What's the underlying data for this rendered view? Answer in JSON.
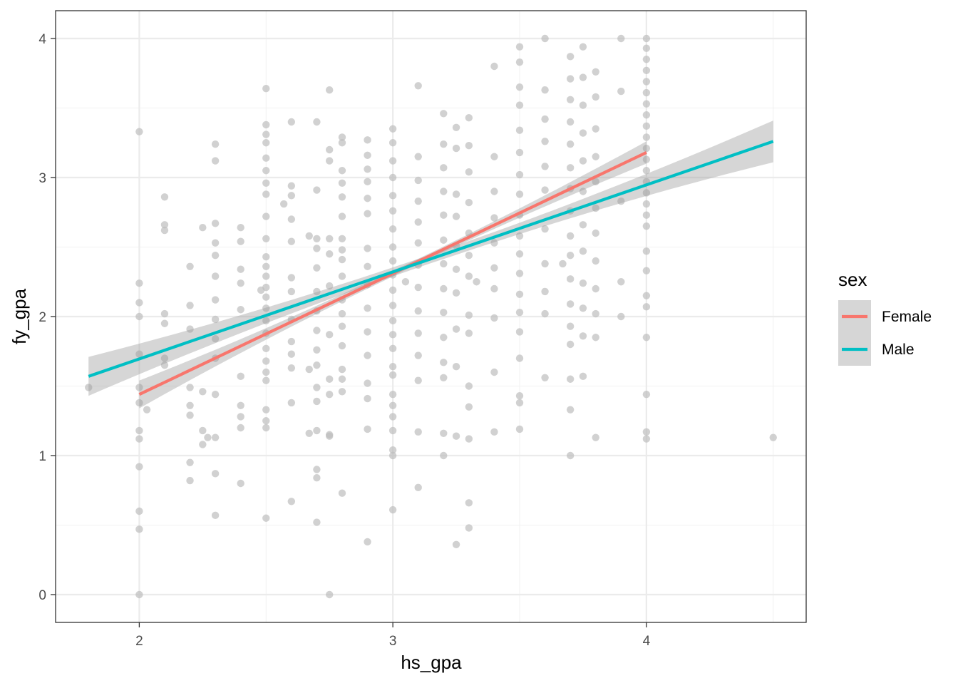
{
  "chart_data": {
    "type": "scatter",
    "xlabel": "hs_gpa",
    "ylabel": "fy_gpa",
    "xlim": [
      1.67,
      4.63
    ],
    "ylim": [
      -0.2,
      4.2
    ],
    "x_ticks": [
      2,
      3,
      4
    ],
    "y_ticks": [
      0,
      1,
      2,
      3,
      4
    ],
    "x_tick_labels": [
      "2",
      "3",
      "4"
    ],
    "y_tick_labels": [
      "0",
      "1",
      "2",
      "3",
      "4"
    ],
    "grid": true,
    "legend": {
      "title": "sex",
      "placement": "right"
    },
    "point_color": "#bebebe",
    "ribbon_color": "#999999",
    "series": [
      {
        "name": "Female",
        "color": "#F8766D",
        "x": [
          2.0,
          4.0
        ],
        "y": [
          1.44,
          3.18
        ],
        "se": [
          0.1,
          0.08
        ]
      },
      {
        "name": "Male",
        "color": "#00BFC4",
        "x": [
          1.8,
          4.5
        ],
        "y": [
          1.57,
          3.26
        ],
        "se": [
          0.14,
          0.15
        ]
      }
    ],
    "points": [
      [
        1.8,
        1.49
      ],
      [
        2.0,
        3.33
      ],
      [
        2.0,
        2.24
      ],
      [
        2.0,
        2.1
      ],
      [
        2.0,
        2.0
      ],
      [
        2.0,
        1.73
      ],
      [
        2.0,
        1.49
      ],
      [
        2.0,
        1.38
      ],
      [
        2.0,
        1.18
      ],
      [
        2.0,
        1.12
      ],
      [
        2.0,
        0.92
      ],
      [
        2.0,
        0.6
      ],
      [
        2.0,
        0.47
      ],
      [
        2.0,
        0.0
      ],
      [
        2.03,
        1.33
      ],
      [
        2.1,
        2.86
      ],
      [
        2.1,
        2.66
      ],
      [
        2.1,
        2.62
      ],
      [
        2.1,
        2.02
      ],
      [
        2.1,
        1.95
      ],
      [
        2.1,
        1.7
      ],
      [
        2.1,
        1.65
      ],
      [
        2.2,
        2.36
      ],
      [
        2.2,
        2.08
      ],
      [
        2.2,
        1.91
      ],
      [
        2.2,
        1.49
      ],
      [
        2.2,
        1.36
      ],
      [
        2.2,
        1.29
      ],
      [
        2.2,
        0.95
      ],
      [
        2.2,
        0.82
      ],
      [
        2.25,
        2.64
      ],
      [
        2.25,
        1.46
      ],
      [
        2.25,
        1.18
      ],
      [
        2.25,
        1.08
      ],
      [
        2.27,
        1.13
      ],
      [
        2.3,
        3.24
      ],
      [
        2.3,
        3.12
      ],
      [
        2.3,
        2.67
      ],
      [
        2.3,
        2.53
      ],
      [
        2.3,
        2.44
      ],
      [
        2.3,
        2.29
      ],
      [
        2.3,
        2.12
      ],
      [
        2.3,
        1.98
      ],
      [
        2.3,
        1.84
      ],
      [
        2.3,
        1.7
      ],
      [
        2.3,
        1.44
      ],
      [
        2.3,
        1.13
      ],
      [
        2.3,
        0.87
      ],
      [
        2.3,
        0.57
      ],
      [
        2.4,
        2.64
      ],
      [
        2.4,
        2.54
      ],
      [
        2.4,
        2.34
      ],
      [
        2.4,
        2.24
      ],
      [
        2.4,
        2.05
      ],
      [
        2.4,
        1.57
      ],
      [
        2.4,
        1.36
      ],
      [
        2.4,
        1.28
      ],
      [
        2.4,
        1.2
      ],
      [
        2.4,
        0.8
      ],
      [
        2.48,
        2.19
      ],
      [
        2.5,
        3.64
      ],
      [
        2.5,
        3.38
      ],
      [
        2.5,
        3.31
      ],
      [
        2.5,
        3.25
      ],
      [
        2.5,
        3.14
      ],
      [
        2.5,
        3.05
      ],
      [
        2.5,
        2.96
      ],
      [
        2.5,
        2.88
      ],
      [
        2.5,
        2.72
      ],
      [
        2.5,
        2.56
      ],
      [
        2.5,
        2.43
      ],
      [
        2.5,
        2.36
      ],
      [
        2.5,
        2.29
      ],
      [
        2.5,
        2.21
      ],
      [
        2.5,
        2.14
      ],
      [
        2.5,
        2.06
      ],
      [
        2.5,
        1.97
      ],
      [
        2.5,
        1.88
      ],
      [
        2.5,
        1.77
      ],
      [
        2.5,
        1.68
      ],
      [
        2.5,
        1.6
      ],
      [
        2.5,
        1.54
      ],
      [
        2.5,
        1.33
      ],
      [
        2.5,
        1.25
      ],
      [
        2.5,
        1.2
      ],
      [
        2.5,
        0.55
      ],
      [
        2.57,
        2.81
      ],
      [
        2.6,
        3.4
      ],
      [
        2.6,
        2.94
      ],
      [
        2.6,
        2.87
      ],
      [
        2.6,
        2.7
      ],
      [
        2.6,
        2.54
      ],
      [
        2.6,
        2.28
      ],
      [
        2.6,
        2.18
      ],
      [
        2.6,
        1.98
      ],
      [
        2.6,
        1.82
      ],
      [
        2.6,
        1.73
      ],
      [
        2.6,
        1.63
      ],
      [
        2.6,
        1.38
      ],
      [
        2.6,
        0.67
      ],
      [
        2.67,
        2.58
      ],
      [
        2.67,
        1.62
      ],
      [
        2.67,
        1.16
      ],
      [
        2.7,
        3.4
      ],
      [
        2.7,
        2.91
      ],
      [
        2.7,
        2.56
      ],
      [
        2.7,
        2.49
      ],
      [
        2.7,
        2.35
      ],
      [
        2.7,
        2.18
      ],
      [
        2.7,
        2.04
      ],
      [
        2.7,
        1.9
      ],
      [
        2.7,
        1.76
      ],
      [
        2.7,
        1.65
      ],
      [
        2.7,
        1.49
      ],
      [
        2.7,
        1.39
      ],
      [
        2.7,
        1.18
      ],
      [
        2.7,
        0.9
      ],
      [
        2.7,
        0.84
      ],
      [
        2.7,
        0.52
      ],
      [
        2.75,
        3.63
      ],
      [
        2.75,
        3.2
      ],
      [
        2.75,
        3.12
      ],
      [
        2.75,
        2.56
      ],
      [
        2.75,
        2.45
      ],
      [
        2.75,
        2.22
      ],
      [
        2.75,
        1.87
      ],
      [
        2.75,
        1.55
      ],
      [
        2.75,
        1.44
      ],
      [
        2.75,
        1.15
      ],
      [
        2.75,
        1.14
      ],
      [
        2.75,
        0.0
      ],
      [
        2.8,
        3.29
      ],
      [
        2.8,
        3.25
      ],
      [
        2.8,
        3.05
      ],
      [
        2.8,
        2.96
      ],
      [
        2.8,
        2.86
      ],
      [
        2.8,
        2.72
      ],
      [
        2.8,
        2.56
      ],
      [
        2.8,
        2.48
      ],
      [
        2.8,
        2.41
      ],
      [
        2.8,
        2.29
      ],
      [
        2.8,
        2.12
      ],
      [
        2.8,
        2.02
      ],
      [
        2.8,
        1.93
      ],
      [
        2.8,
        1.79
      ],
      [
        2.8,
        1.62
      ],
      [
        2.8,
        1.55
      ],
      [
        2.8,
        1.46
      ],
      [
        2.8,
        0.73
      ],
      [
        2.9,
        3.27
      ],
      [
        2.9,
        3.16
      ],
      [
        2.9,
        3.06
      ],
      [
        2.9,
        2.97
      ],
      [
        2.9,
        2.85
      ],
      [
        2.9,
        2.74
      ],
      [
        2.9,
        2.49
      ],
      [
        2.9,
        2.36
      ],
      [
        2.9,
        2.23
      ],
      [
        2.9,
        2.06
      ],
      [
        2.9,
        1.89
      ],
      [
        2.9,
        1.72
      ],
      [
        2.9,
        1.52
      ],
      [
        2.9,
        1.41
      ],
      [
        2.9,
        1.19
      ],
      [
        2.9,
        0.38
      ],
      [
        3.0,
        3.35
      ],
      [
        3.0,
        3.25
      ],
      [
        3.0,
        3.12
      ],
      [
        3.0,
        3.0
      ],
      [
        3.0,
        2.87
      ],
      [
        3.0,
        2.76
      ],
      [
        3.0,
        2.63
      ],
      [
        3.0,
        2.5
      ],
      [
        3.0,
        2.4
      ],
      [
        3.0,
        2.3
      ],
      [
        3.0,
        2.19
      ],
      [
        3.0,
        2.08
      ],
      [
        3.0,
        1.97
      ],
      [
        3.0,
        1.87
      ],
      [
        3.0,
        1.77
      ],
      [
        3.0,
        1.64
      ],
      [
        3.0,
        1.58
      ],
      [
        3.0,
        1.44
      ],
      [
        3.0,
        1.36
      ],
      [
        3.0,
        1.28
      ],
      [
        3.0,
        1.18
      ],
      [
        3.0,
        1.04
      ],
      [
        3.0,
        1.0
      ],
      [
        3.0,
        0.61
      ],
      [
        3.05,
        2.25
      ],
      [
        3.1,
        3.66
      ],
      [
        3.1,
        3.15
      ],
      [
        3.1,
        2.98
      ],
      [
        3.1,
        2.83
      ],
      [
        3.1,
        2.68
      ],
      [
        3.1,
        2.53
      ],
      [
        3.1,
        2.37
      ],
      [
        3.1,
        2.21
      ],
      [
        3.1,
        2.04
      ],
      [
        3.1,
        1.88
      ],
      [
        3.1,
        1.72
      ],
      [
        3.1,
        1.54
      ],
      [
        3.1,
        1.17
      ],
      [
        3.1,
        0.77
      ],
      [
        3.2,
        3.46
      ],
      [
        3.2,
        3.24
      ],
      [
        3.2,
        3.07
      ],
      [
        3.2,
        2.9
      ],
      [
        3.2,
        2.73
      ],
      [
        3.2,
        2.55
      ],
      [
        3.2,
        2.38
      ],
      [
        3.2,
        2.2
      ],
      [
        3.2,
        2.03
      ],
      [
        3.2,
        1.85
      ],
      [
        3.2,
        1.67
      ],
      [
        3.2,
        1.56
      ],
      [
        3.2,
        1.16
      ],
      [
        3.2,
        1.0
      ],
      [
        3.25,
        3.36
      ],
      [
        3.25,
        3.21
      ],
      [
        3.25,
        2.88
      ],
      [
        3.25,
        2.72
      ],
      [
        3.25,
        2.51
      ],
      [
        3.25,
        2.34
      ],
      [
        3.25,
        2.17
      ],
      [
        3.25,
        1.91
      ],
      [
        3.25,
        1.64
      ],
      [
        3.25,
        1.14
      ],
      [
        3.25,
        0.36
      ],
      [
        3.3,
        3.43
      ],
      [
        3.3,
        3.23
      ],
      [
        3.3,
        3.04
      ],
      [
        3.3,
        2.82
      ],
      [
        3.3,
        2.6
      ],
      [
        3.3,
        2.44
      ],
      [
        3.3,
        2.29
      ],
      [
        3.3,
        2.01
      ],
      [
        3.3,
        1.88
      ],
      [
        3.3,
        1.5
      ],
      [
        3.3,
        1.35
      ],
      [
        3.3,
        1.12
      ],
      [
        3.3,
        0.66
      ],
      [
        3.3,
        0.48
      ],
      [
        3.33,
        2.25
      ],
      [
        3.4,
        3.8
      ],
      [
        3.4,
        3.15
      ],
      [
        3.4,
        2.9
      ],
      [
        3.4,
        2.71
      ],
      [
        3.4,
        2.53
      ],
      [
        3.4,
        2.35
      ],
      [
        3.4,
        2.2
      ],
      [
        3.4,
        1.99
      ],
      [
        3.4,
        1.6
      ],
      [
        3.4,
        1.17
      ],
      [
        3.5,
        3.94
      ],
      [
        3.5,
        3.83
      ],
      [
        3.5,
        3.65
      ],
      [
        3.5,
        3.52
      ],
      [
        3.5,
        3.34
      ],
      [
        3.5,
        3.18
      ],
      [
        3.5,
        3.02
      ],
      [
        3.5,
        2.88
      ],
      [
        3.5,
        2.73
      ],
      [
        3.5,
        2.58
      ],
      [
        3.5,
        2.45
      ],
      [
        3.5,
        2.31
      ],
      [
        3.5,
        2.16
      ],
      [
        3.5,
        2.03
      ],
      [
        3.5,
        1.89
      ],
      [
        3.5,
        1.7
      ],
      [
        3.5,
        1.43
      ],
      [
        3.5,
        1.38
      ],
      [
        3.5,
        1.19
      ],
      [
        3.6,
        4.0
      ],
      [
        3.6,
        3.63
      ],
      [
        3.6,
        3.42
      ],
      [
        3.6,
        3.26
      ],
      [
        3.6,
        3.08
      ],
      [
        3.6,
        2.91
      ],
      [
        3.6,
        2.63
      ],
      [
        3.6,
        2.38
      ],
      [
        3.6,
        2.18
      ],
      [
        3.6,
        2.02
      ],
      [
        3.6,
        1.56
      ],
      [
        3.67,
        2.38
      ],
      [
        3.7,
        3.87
      ],
      [
        3.7,
        3.71
      ],
      [
        3.7,
        3.56
      ],
      [
        3.7,
        3.4
      ],
      [
        3.7,
        3.24
      ],
      [
        3.7,
        3.07
      ],
      [
        3.7,
        2.92
      ],
      [
        3.7,
        2.76
      ],
      [
        3.7,
        2.58
      ],
      [
        3.7,
        2.44
      ],
      [
        3.7,
        2.27
      ],
      [
        3.7,
        2.09
      ],
      [
        3.7,
        1.93
      ],
      [
        3.7,
        1.8
      ],
      [
        3.7,
        1.55
      ],
      [
        3.7,
        1.33
      ],
      [
        3.7,
        1.0
      ],
      [
        3.75,
        3.94
      ],
      [
        3.75,
        3.72
      ],
      [
        3.75,
        3.52
      ],
      [
        3.75,
        3.32
      ],
      [
        3.75,
        3.12
      ],
      [
        3.75,
        2.9
      ],
      [
        3.75,
        2.66
      ],
      [
        3.75,
        2.47
      ],
      [
        3.75,
        2.24
      ],
      [
        3.75,
        2.06
      ],
      [
        3.75,
        1.86
      ],
      [
        3.75,
        1.57
      ],
      [
        3.8,
        3.76
      ],
      [
        3.8,
        3.58
      ],
      [
        3.8,
        3.35
      ],
      [
        3.8,
        3.15
      ],
      [
        3.8,
        2.97
      ],
      [
        3.8,
        2.78
      ],
      [
        3.8,
        2.6
      ],
      [
        3.8,
        2.4
      ],
      [
        3.8,
        2.2
      ],
      [
        3.8,
        2.02
      ],
      [
        3.8,
        1.85
      ],
      [
        3.8,
        1.13
      ],
      [
        3.9,
        4.0
      ],
      [
        3.9,
        3.62
      ],
      [
        3.9,
        2.83
      ],
      [
        3.9,
        2.25
      ],
      [
        3.9,
        2.0
      ],
      [
        4.0,
        4.0
      ],
      [
        4.0,
        3.93
      ],
      [
        4.0,
        3.85
      ],
      [
        4.0,
        3.77
      ],
      [
        4.0,
        3.69
      ],
      [
        4.0,
        3.61
      ],
      [
        4.0,
        3.53
      ],
      [
        4.0,
        3.45
      ],
      [
        4.0,
        3.37
      ],
      [
        4.0,
        3.29
      ],
      [
        4.0,
        3.21
      ],
      [
        4.0,
        3.13
      ],
      [
        4.0,
        3.05
      ],
      [
        4.0,
        2.97
      ],
      [
        4.0,
        2.89
      ],
      [
        4.0,
        2.81
      ],
      [
        4.0,
        2.73
      ],
      [
        4.0,
        2.65
      ],
      [
        4.0,
        2.47
      ],
      [
        4.0,
        2.33
      ],
      [
        4.0,
        2.15
      ],
      [
        4.0,
        2.07
      ],
      [
        4.0,
        1.85
      ],
      [
        4.0,
        1.44
      ],
      [
        4.0,
        1.17
      ],
      [
        4.0,
        1.12
      ],
      [
        4.5,
        1.13
      ]
    ]
  }
}
